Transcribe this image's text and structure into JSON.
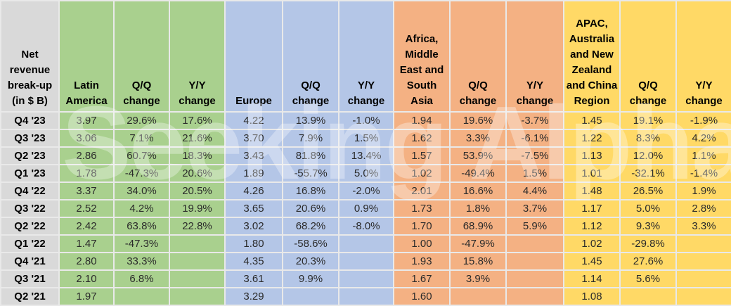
{
  "watermark": {
    "text": "Seeking Alpha",
    "symbol": "α"
  },
  "colors": {
    "rowhead": "#D9D9D9",
    "latam": "#A9D08E",
    "europe": "#B4C6E7",
    "amesa": "#F4B183",
    "apac": "#FFD966",
    "gridline": "#E9E9E9",
    "text": "#2B2B2B"
  },
  "chart_data": {
    "type": "table",
    "title": "Net revenue break-up (in $ B)",
    "legend_groups": [
      {
        "name": "Latin America",
        "color": "#A9D08E"
      },
      {
        "name": "Europe",
        "color": "#B4C6E7"
      },
      {
        "name": "Africa, Middle East and South Asia",
        "color": "#F4B183"
      },
      {
        "name": "APAC, Australia and New Zealand and China Region",
        "color": "#FFD966"
      }
    ],
    "columns": [
      {
        "label": "Net revenue break-up (in $ B)",
        "group": "rowhead"
      },
      {
        "label": "Latin America",
        "group": "latam"
      },
      {
        "label": "Q/Q change",
        "group": "latam"
      },
      {
        "label": "Y/Y change",
        "group": "latam"
      },
      {
        "label": "Europe",
        "group": "europe"
      },
      {
        "label": "Q/Q change",
        "group": "europe"
      },
      {
        "label": "Y/Y change",
        "group": "europe"
      },
      {
        "label": "Africa, Middle East and South Asia",
        "group": "amesa"
      },
      {
        "label": "Q/Q change",
        "group": "amesa"
      },
      {
        "label": "Y/Y change",
        "group": "amesa"
      },
      {
        "label": "APAC, Australia and New Zealand and China Region",
        "group": "apac"
      },
      {
        "label": "Q/Q change",
        "group": "apac"
      },
      {
        "label": "Y/Y change",
        "group": "apac"
      }
    ],
    "rows": [
      {
        "label": "Q4 '23",
        "cells": [
          "3.97",
          "29.6%",
          "17.6%",
          "4.22",
          "13.9%",
          "-1.0%",
          "1.94",
          "19.6%",
          "-3.7%",
          "1.45",
          "19.1%",
          "-1.9%"
        ]
      },
      {
        "label": "Q3 '23",
        "cells": [
          "3.06",
          "7.1%",
          "21.6%",
          "3.70",
          "7.9%",
          "1.5%",
          "1.62",
          "3.3%",
          "-6.1%",
          "1.22",
          "8.3%",
          "4.2%"
        ]
      },
      {
        "label": "Q2 '23",
        "cells": [
          "2.86",
          "60.7%",
          "18.3%",
          "3.43",
          "81.8%",
          "13.4%",
          "1.57",
          "53.9%",
          "-7.5%",
          "1.13",
          "12.0%",
          "1.1%"
        ]
      },
      {
        "label": "Q1 '23",
        "cells": [
          "1.78",
          "-47.3%",
          "20.6%",
          "1.89",
          "-55.7%",
          "5.0%",
          "1.02",
          "-49.4%",
          "1.5%",
          "1.01",
          "-32.1%",
          "-1.4%"
        ]
      },
      {
        "label": "Q4 '22",
        "cells": [
          "3.37",
          "34.0%",
          "20.5%",
          "4.26",
          "16.8%",
          "-2.0%",
          "2.01",
          "16.6%",
          "4.4%",
          "1.48",
          "26.5%",
          "1.9%"
        ]
      },
      {
        "label": "Q3 '22",
        "cells": [
          "2.52",
          "4.2%",
          "19.9%",
          "3.65",
          "20.6%",
          "0.9%",
          "1.73",
          "1.8%",
          "3.7%",
          "1.17",
          "5.0%",
          "2.8%"
        ]
      },
      {
        "label": "Q2 '22",
        "cells": [
          "2.42",
          "63.8%",
          "22.8%",
          "3.02",
          "68.2%",
          "-8.0%",
          "1.70",
          "68.9%",
          "5.9%",
          "1.12",
          "9.3%",
          "3.3%"
        ]
      },
      {
        "label": "Q1 '22",
        "cells": [
          "1.47",
          "-47.3%",
          "",
          "1.80",
          "-58.6%",
          "",
          "1.00",
          "-47.9%",
          "",
          "1.02",
          "-29.8%",
          ""
        ]
      },
      {
        "label": "Q4 '21",
        "cells": [
          "2.80",
          "33.3%",
          "",
          "4.35",
          "20.3%",
          "",
          "1.93",
          "15.8%",
          "",
          "1.45",
          "27.6%",
          ""
        ]
      },
      {
        "label": "Q3 '21",
        "cells": [
          "2.10",
          "6.8%",
          "",
          "3.61",
          "9.9%",
          "",
          "1.67",
          "3.9%",
          "",
          "1.14",
          "5.6%",
          ""
        ]
      },
      {
        "label": "Q2 '21",
        "cells": [
          "1.97",
          "",
          "",
          "3.29",
          "",
          "",
          "1.60",
          "",
          "",
          "1.08",
          "",
          ""
        ]
      }
    ]
  }
}
